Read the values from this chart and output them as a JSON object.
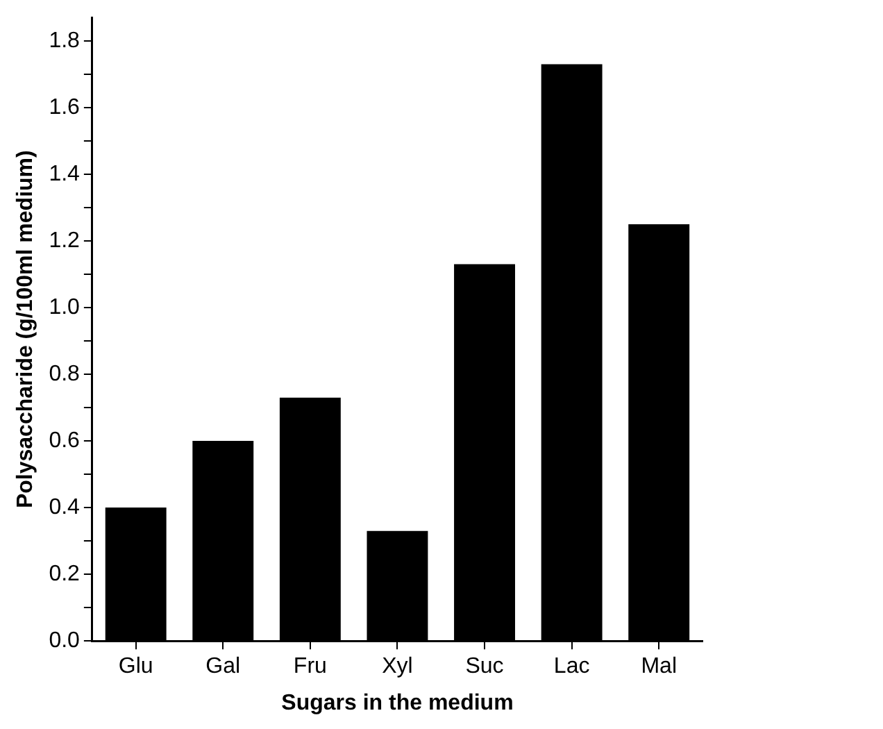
{
  "chart_data": {
    "type": "bar",
    "xlabel": "Sugars in the medium",
    "ylabel": "Polysaccharide (g/100ml medium)",
    "categories": [
      "Glu",
      "Gal",
      "Fru",
      "Xyl",
      "Suc",
      "Lac",
      "Mal"
    ],
    "values": [
      0.4,
      0.6,
      0.73,
      0.33,
      1.13,
      1.73,
      1.25
    ],
    "color": "#000000",
    "ylim": [
      0,
      1.87
    ],
    "yticks": [
      {
        "value": 0,
        "label": "0.0"
      },
      {
        "value": 0.1,
        "label": null
      },
      {
        "value": 0.2,
        "label": "0.2"
      },
      {
        "value": 0.3,
        "label": null
      },
      {
        "value": 0.4,
        "label": "0.4"
      },
      {
        "value": 0.5,
        "label": null
      },
      {
        "value": 0.6,
        "label": "0.6"
      },
      {
        "value": 0.7,
        "label": null
      },
      {
        "value": 0.8,
        "label": "0.8"
      },
      {
        "value": 0.9,
        "label": null
      },
      {
        "value": 1.0,
        "label": "1.0"
      },
      {
        "value": 1.1,
        "label": null
      },
      {
        "value": 1.2,
        "label": "1.2"
      },
      {
        "value": 1.3,
        "label": null
      },
      {
        "value": 1.4,
        "label": "1.4"
      },
      {
        "value": 1.5,
        "label": null
      },
      {
        "value": 1.6,
        "label": "1.6"
      },
      {
        "value": 1.7,
        "label": null
      },
      {
        "value": 1.8,
        "label": "1.8"
      }
    ],
    "grid": false,
    "legend": false
  }
}
